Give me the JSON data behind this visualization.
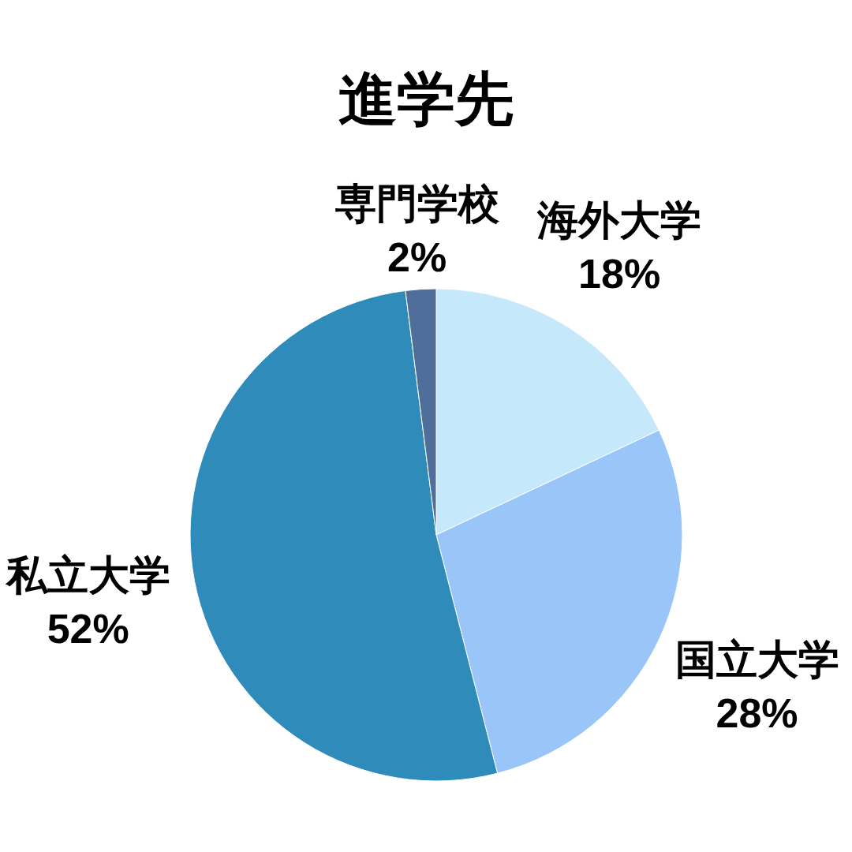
{
  "chart_data": {
    "type": "pie",
    "title": "進学先",
    "categories": [
      "海外大学",
      "国立大学",
      "私立大学",
      "専門学校"
    ],
    "values": [
      18,
      28,
      52,
      2
    ],
    "colors": [
      "#c5e8fb",
      "#9ac5f9",
      "#2e8bba",
      "#4f6f9a"
    ],
    "value_labels": [
      "18%",
      "28%",
      "52%",
      "2%"
    ]
  }
}
